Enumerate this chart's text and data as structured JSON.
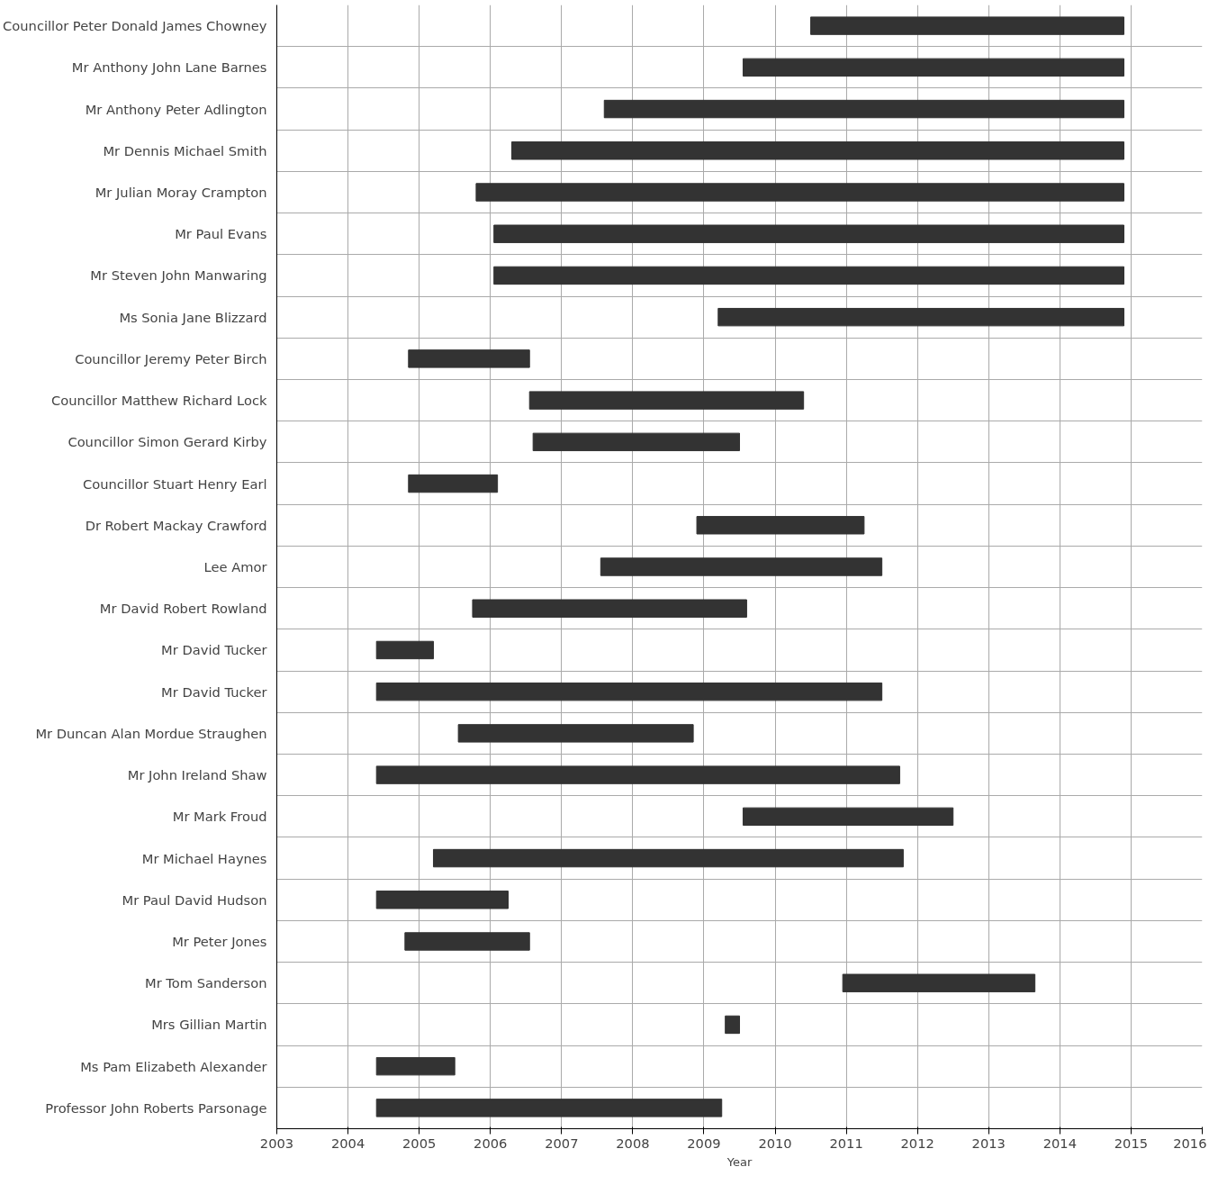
{
  "chart_data": {
    "type": "bar",
    "orientation": "horizontal",
    "xlabel": "Year",
    "categories": [
      "Councillor Peter Donald James Chowney",
      "Mr Anthony John Lane Barnes",
      "Mr Anthony Peter Adlington",
      "Mr Dennis Michael Smith",
      "Mr Julian Moray Crampton",
      "Mr Paul Evans",
      "Mr Steven John Manwaring",
      "Ms Sonia Jane Blizzard",
      "Councillor Jeremy Peter Birch",
      "Councillor Matthew Richard Lock",
      "Councillor Simon Gerard Kirby",
      "Councillor Stuart Henry Earl",
      "Dr Robert Mackay Crawford",
      "Lee Amor",
      "Mr David Robert Rowland",
      "Mr David Tucker",
      "Mr David Tucker",
      "Mr Duncan Alan Mordue Straughen",
      "Mr John Ireland Shaw",
      "Mr Mark Froud",
      "Mr Michael Haynes",
      "Mr Paul David Hudson",
      "Mr Peter Jones",
      "Mr Tom Sanderson",
      "Mrs Gillian Martin",
      "Ms Pam Elizabeth Alexander",
      "Professor John Roberts Parsonage"
    ],
    "base": [
      2010.5,
      2009.55,
      2007.6,
      2006.3,
      2005.8,
      2006.05,
      2006.05,
      2009.2,
      2004.85,
      2006.55,
      2006.6,
      2004.85,
      2008.9,
      2007.55,
      2005.75,
      2004.4,
      2004.4,
      2005.55,
      2004.4,
      2009.55,
      2005.2,
      2004.4,
      2004.8,
      2010.95,
      2009.3,
      2004.4,
      2004.4
    ],
    "values": [
      4.4,
      5.35,
      7.3,
      8.6,
      9.1,
      8.85,
      8.85,
      5.7,
      1.7,
      3.85,
      2.9,
      1.25,
      2.35,
      3.95,
      3.85,
      0.8,
      7.1,
      3.3,
      7.35,
      2.95,
      6.6,
      1.85,
      1.75,
      2.7,
      0.2,
      1.1,
      4.85
    ],
    "color": "#333333",
    "xlim": [
      2003,
      2016
    ],
    "xticks": [
      2003,
      2004,
      2005,
      2006,
      2007,
      2008,
      2009,
      2010,
      2011,
      2012,
      2013,
      2014,
      2015,
      2016
    ],
    "grid": true
  }
}
